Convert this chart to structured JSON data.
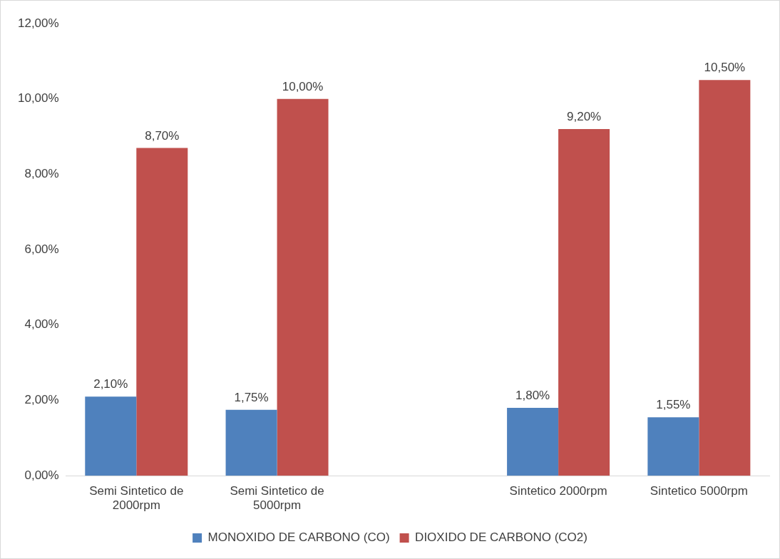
{
  "chart_data": {
    "type": "bar",
    "categories": [
      "Semi Sintetico de 2000rpm",
      "Semi Sintetico de 5000rpm",
      null,
      "Sintetico 2000rpm",
      "Sintetico 5000rpm"
    ],
    "series": [
      {
        "name": "MONOXIDO DE CARBONO (CO)",
        "color": "#4f81bd",
        "values": [
          2.1,
          1.75,
          null,
          1.8,
          1.55
        ],
        "value_labels": [
          "2,10%",
          "1,75%",
          null,
          "1,80%",
          "1,55%"
        ]
      },
      {
        "name": "DIOXIDO DE CARBONO (CO2)",
        "color": "#c0504d",
        "values": [
          8.7,
          10.0,
          null,
          9.2,
          10.5
        ],
        "value_labels": [
          "8,70%",
          "10,00%",
          null,
          "9,20%",
          "10,50%"
        ]
      }
    ],
    "ylim": [
      0,
      12
    ],
    "yticks": [
      {
        "value": 0,
        "label": "0,00%"
      },
      {
        "value": 2,
        "label": "2,00%"
      },
      {
        "value": 4,
        "label": "4,00%"
      },
      {
        "value": 6,
        "label": "6,00%"
      },
      {
        "value": 8,
        "label": "8,00%"
      },
      {
        "value": 10,
        "label": "10,00%"
      },
      {
        "value": 12,
        "label": "12,00%"
      }
    ],
    "grid": false,
    "legend": "bottom"
  }
}
